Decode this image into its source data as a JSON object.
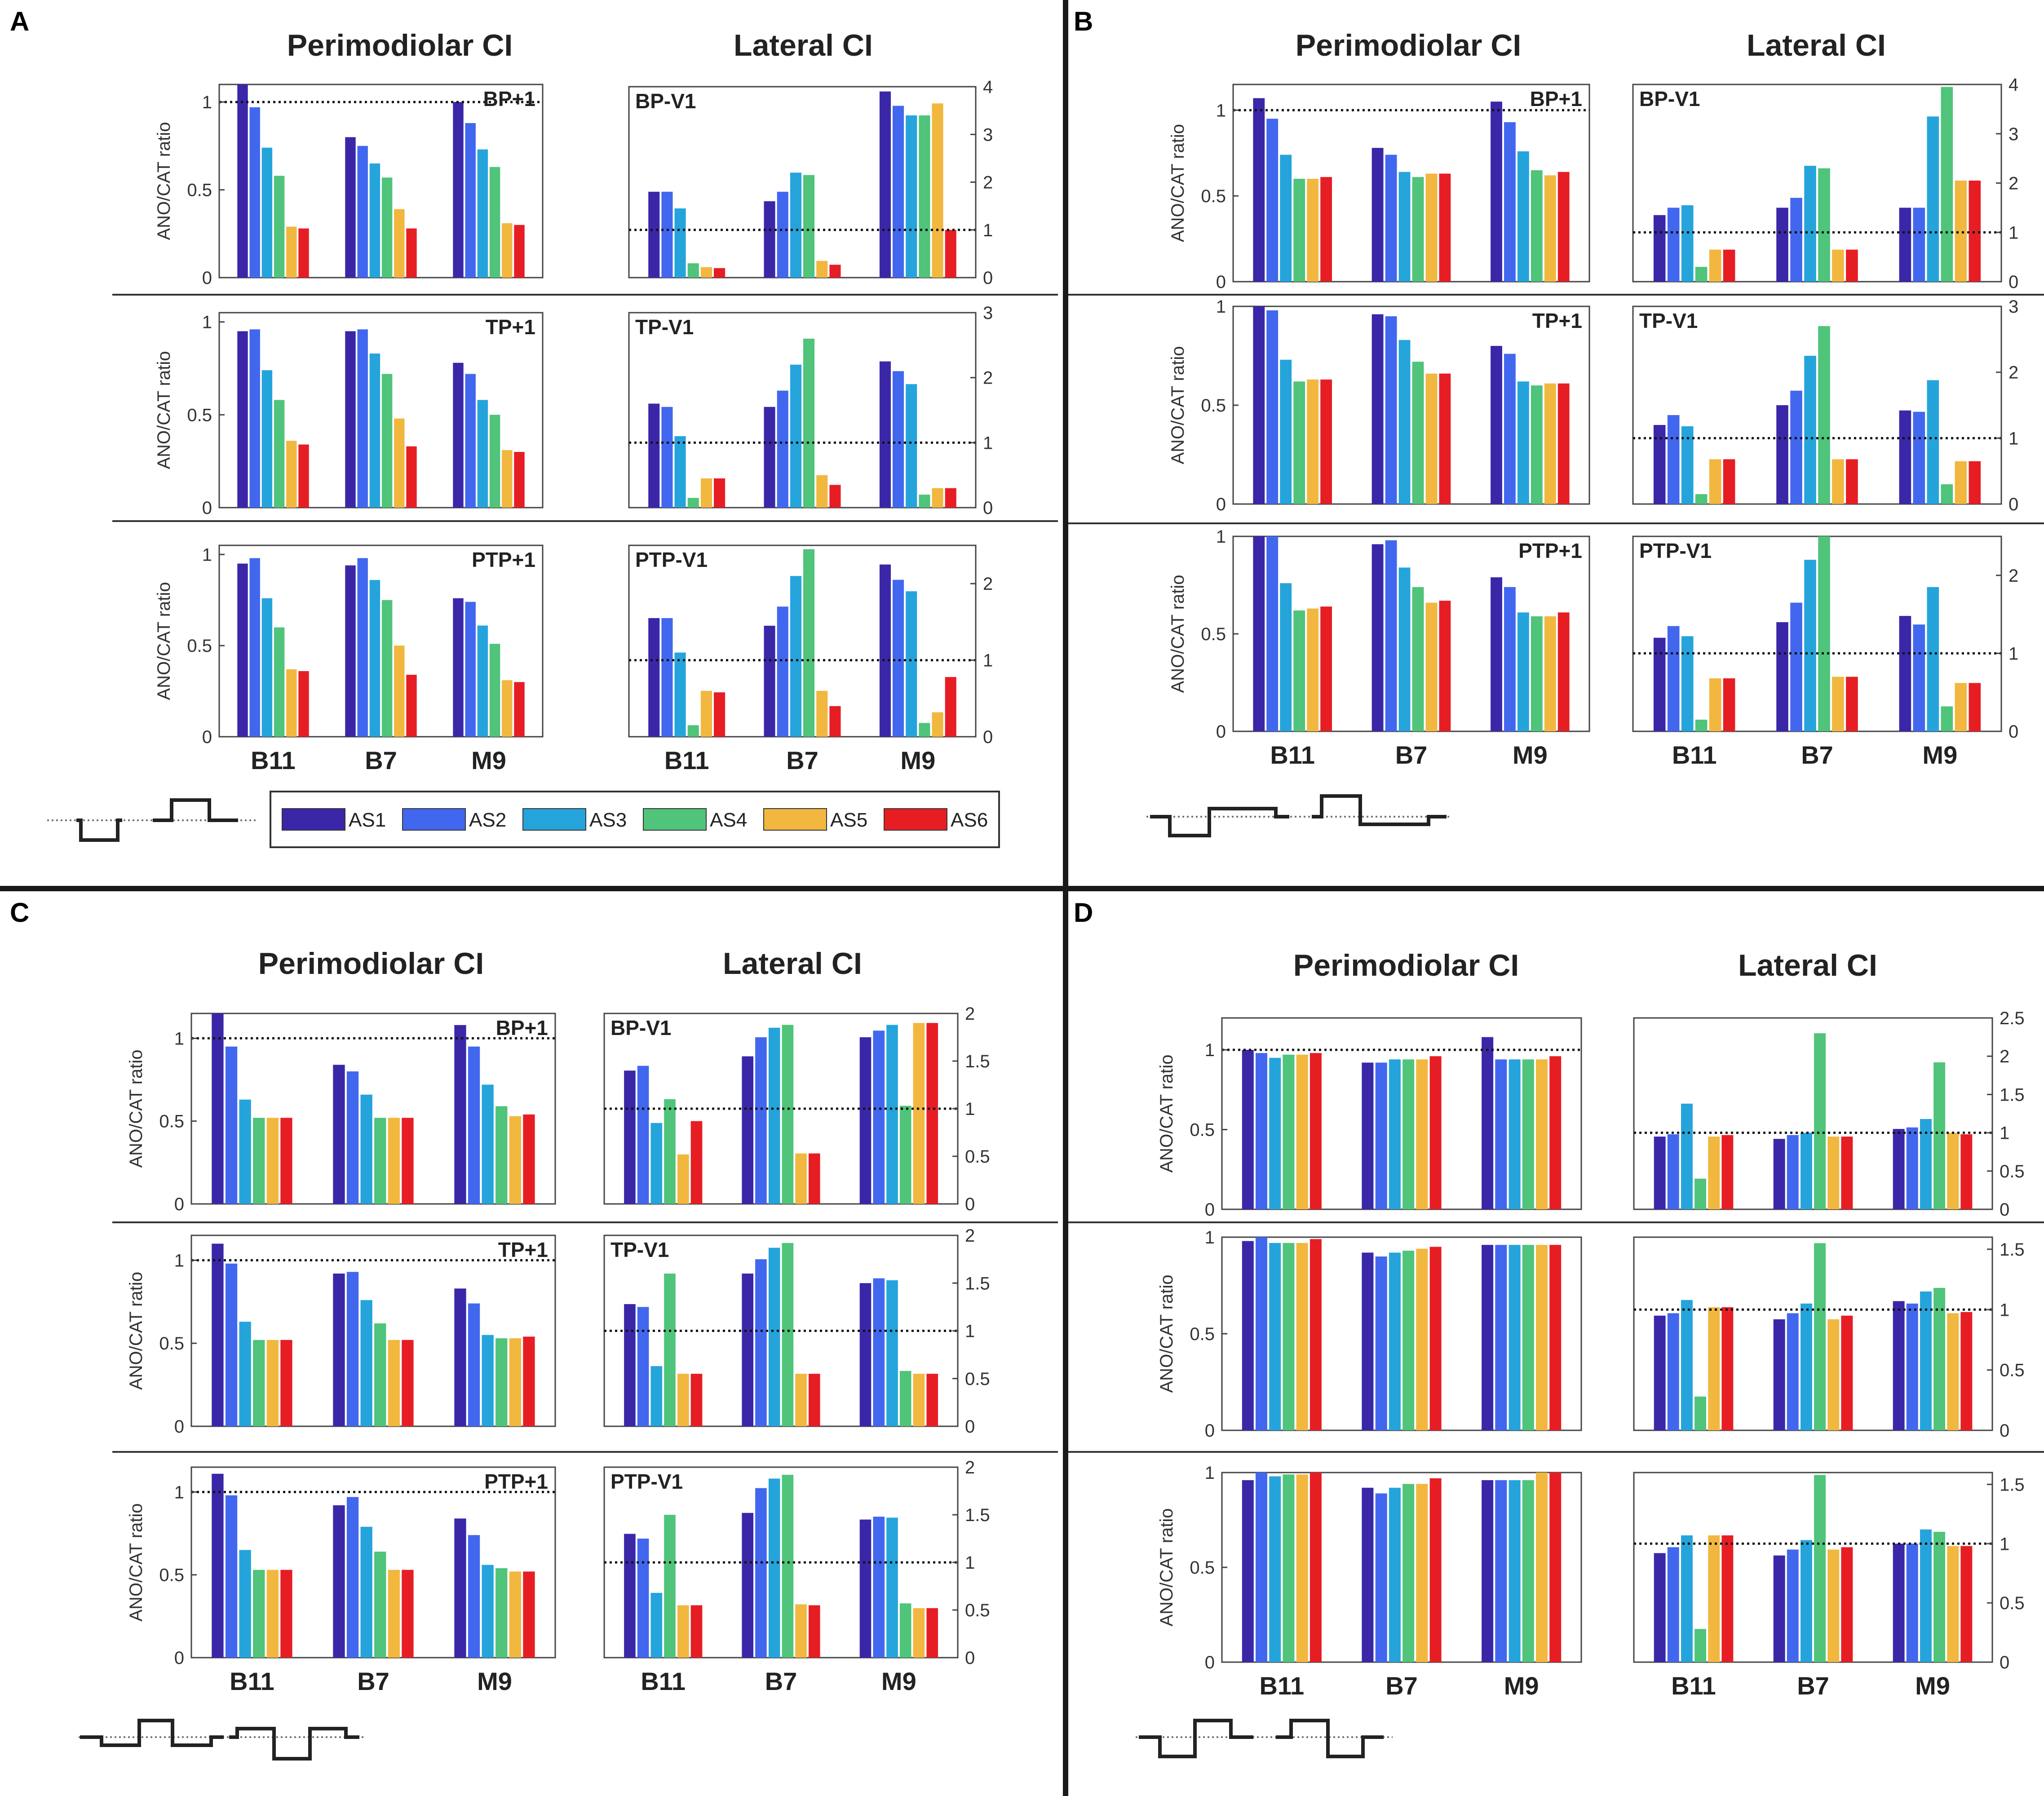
{
  "figure": {
    "panel_titles": {
      "peri": "Perimodiolar CI",
      "lat": "Lateral CI"
    },
    "ylabel": "ANO/CAT ratio",
    "xcategories": [
      "B11",
      "B7",
      "M9"
    ],
    "legend": {
      "items": [
        "AS1",
        "AS2",
        "AS3",
        "AS4",
        "AS5",
        "AS6"
      ],
      "colors": [
        "#3a27a8",
        "#4267ef",
        "#25a4dc",
        "#4fc47a",
        "#f1b73f",
        "#e61e24"
      ]
    }
  },
  "chart_data": [
    {
      "id": "A-peri-1",
      "panel": "A",
      "type": "bar",
      "side": "peri",
      "tag": "BP+1",
      "ylim": [
        0,
        1.1
      ],
      "ref": 1,
      "yticks": [
        "0",
        "0.5",
        "1"
      ],
      "series": [
        [
          1.1,
          0.97,
          0.74,
          0.58,
          0.29,
          0.28
        ],
        [
          0.8,
          0.75,
          0.65,
          0.57,
          0.39,
          0.28
        ],
        [
          1.0,
          0.88,
          0.73,
          0.63,
          0.31,
          0.3
        ]
      ]
    },
    {
      "id": "A-lat-1",
      "panel": "A",
      "type": "bar",
      "side": "lat",
      "tag": "BP-V1",
      "ylim": [
        0,
        4
      ],
      "ref": 1,
      "yticks": [
        "0",
        "1",
        "2",
        "3",
        "4"
      ],
      "series": [
        [
          1.8,
          1.8,
          1.45,
          0.3,
          0.22,
          0.2
        ],
        [
          1.6,
          1.8,
          2.2,
          2.15,
          0.35,
          0.27
        ],
        [
          3.9,
          3.6,
          3.4,
          3.4,
          3.65,
          1.0
        ]
      ]
    },
    {
      "id": "A-peri-2",
      "panel": "A",
      "type": "bar",
      "side": "peri",
      "tag": "TP+1",
      "ylim": [
        0,
        1.05
      ],
      "ref": null,
      "yticks": [
        "0",
        "0.5",
        "1"
      ],
      "series": [
        [
          0.95,
          0.96,
          0.74,
          0.58,
          0.36,
          0.34
        ],
        [
          0.95,
          0.96,
          0.83,
          0.72,
          0.48,
          0.33
        ],
        [
          0.78,
          0.72,
          0.58,
          0.5,
          0.31,
          0.3
        ]
      ]
    },
    {
      "id": "A-lat-2",
      "panel": "A",
      "type": "bar",
      "side": "lat",
      "tag": "TP-V1",
      "ylim": [
        0,
        3
      ],
      "ref": 1,
      "yticks": [
        "0",
        "1",
        "2",
        "3"
      ],
      "series": [
        [
          1.6,
          1.55,
          1.1,
          0.15,
          0.45,
          0.45
        ],
        [
          1.55,
          1.8,
          2.2,
          2.6,
          0.5,
          0.35
        ],
        [
          2.25,
          2.1,
          1.9,
          0.2,
          0.3,
          0.3
        ]
      ]
    },
    {
      "id": "A-peri-3",
      "panel": "A",
      "type": "bar",
      "side": "peri",
      "tag": "PTP+1",
      "ylim": [
        0,
        1.05
      ],
      "ref": null,
      "yticks": [
        "0",
        "0.5",
        "1"
      ],
      "series": [
        [
          0.95,
          0.98,
          0.76,
          0.6,
          0.37,
          0.36
        ],
        [
          0.94,
          0.98,
          0.86,
          0.75,
          0.5,
          0.34
        ],
        [
          0.76,
          0.74,
          0.61,
          0.51,
          0.31,
          0.3
        ]
      ]
    },
    {
      "id": "A-lat-3",
      "panel": "A",
      "type": "bar",
      "side": "lat",
      "tag": "PTP-V1",
      "ylim": [
        0,
        2.5
      ],
      "ref": 1,
      "yticks": [
        "0",
        "1",
        "2"
      ],
      "series": [
        [
          1.55,
          1.55,
          1.1,
          0.15,
          0.6,
          0.58
        ],
        [
          1.45,
          1.7,
          2.1,
          2.45,
          0.6,
          0.4
        ],
        [
          2.25,
          2.05,
          1.9,
          0.18,
          0.32,
          0.78
        ]
      ]
    },
    {
      "id": "B-peri-1",
      "panel": "B",
      "type": "bar",
      "side": "peri",
      "tag": "BP+1",
      "ylim": [
        0,
        1.15
      ],
      "ref": 1,
      "yticks": [
        "0",
        "0.5",
        "1"
      ],
      "series": [
        [
          1.07,
          0.95,
          0.74,
          0.6,
          0.6,
          0.61
        ],
        [
          0.78,
          0.74,
          0.64,
          0.61,
          0.63,
          0.63
        ],
        [
          1.05,
          0.93,
          0.76,
          0.65,
          0.62,
          0.64
        ]
      ]
    },
    {
      "id": "B-lat-1",
      "panel": "B",
      "type": "bar",
      "side": "lat",
      "tag": "BP-V1",
      "ylim": [
        0,
        4
      ],
      "ref": 1,
      "yticks": [
        "0",
        "1",
        "2",
        "3",
        "4"
      ],
      "series": [
        [
          1.35,
          1.5,
          1.55,
          0.3,
          0.65,
          0.65
        ],
        [
          1.5,
          1.7,
          2.35,
          2.3,
          0.65,
          0.65
        ],
        [
          1.5,
          1.5,
          3.35,
          3.95,
          2.05,
          2.05
        ]
      ]
    },
    {
      "id": "B-peri-2",
      "panel": "B",
      "type": "bar",
      "side": "peri",
      "tag": "TP+1",
      "ylim": [
        0,
        1.0
      ],
      "ref": null,
      "yticks": [
        "0",
        "0.5",
        "1"
      ],
      "series": [
        [
          1.0,
          0.98,
          0.73,
          0.62,
          0.63,
          0.63
        ],
        [
          0.96,
          0.95,
          0.83,
          0.72,
          0.66,
          0.66
        ],
        [
          0.8,
          0.76,
          0.62,
          0.6,
          0.61,
          0.61
        ]
      ]
    },
    {
      "id": "B-lat-2",
      "panel": "B",
      "type": "bar",
      "side": "lat",
      "tag": "TP-V1",
      "ylim": [
        0,
        3
      ],
      "ref": 1,
      "yticks": [
        "0",
        "1",
        "2",
        "3"
      ],
      "series": [
        [
          1.2,
          1.35,
          1.18,
          0.15,
          0.68,
          0.68
        ],
        [
          1.5,
          1.72,
          2.25,
          2.7,
          0.68,
          0.68
        ],
        [
          1.42,
          1.4,
          1.88,
          0.3,
          0.65,
          0.65
        ]
      ]
    },
    {
      "id": "B-peri-3",
      "panel": "B",
      "type": "bar",
      "side": "peri",
      "tag": "PTP+1",
      "ylim": [
        0,
        1.0
      ],
      "ref": null,
      "yticks": [
        "0",
        "0.5",
        "1"
      ],
      "series": [
        [
          1.0,
          1.02,
          0.76,
          0.62,
          0.63,
          0.64
        ],
        [
          0.96,
          0.98,
          0.84,
          0.74,
          0.66,
          0.67
        ],
        [
          0.79,
          0.74,
          0.61,
          0.59,
          0.59,
          0.61
        ]
      ]
    },
    {
      "id": "B-lat-3",
      "panel": "B",
      "type": "bar",
      "side": "lat",
      "tag": "PTP-V1",
      "ylim": [
        0,
        2.5
      ],
      "ref": 1,
      "yticks": [
        "0",
        "1",
        "2"
      ],
      "series": [
        [
          1.2,
          1.35,
          1.22,
          0.15,
          0.68,
          0.68
        ],
        [
          1.4,
          1.65,
          2.2,
          2.6,
          0.7,
          0.7
        ],
        [
          1.48,
          1.37,
          1.85,
          0.32,
          0.62,
          0.62
        ]
      ]
    },
    {
      "id": "C-peri-1",
      "panel": "C",
      "type": "bar",
      "side": "peri",
      "tag": "BP+1",
      "ylim": [
        0,
        1.15
      ],
      "ref": 1,
      "yticks": [
        "0",
        "0.5",
        "1"
      ],
      "series": [
        [
          1.15,
          0.95,
          0.63,
          0.52,
          0.52,
          0.52
        ],
        [
          0.84,
          0.8,
          0.66,
          0.52,
          0.52,
          0.52
        ],
        [
          1.08,
          0.95,
          0.72,
          0.59,
          0.53,
          0.54
        ]
      ]
    },
    {
      "id": "C-lat-1",
      "panel": "C",
      "type": "bar",
      "side": "lat",
      "tag": "BP-V1",
      "ylim": [
        0,
        2
      ],
      "ref": 1,
      "yticks": [
        "0",
        "0.5",
        "1",
        "1.5",
        "2"
      ],
      "series": [
        [
          1.4,
          1.45,
          0.85,
          1.1,
          0.52,
          0.87
        ],
        [
          1.55,
          1.75,
          1.85,
          1.88,
          0.53,
          0.53
        ],
        [
          1.75,
          1.82,
          1.88,
          1.03,
          1.9,
          1.9
        ]
      ]
    },
    {
      "id": "C-peri-2",
      "panel": "C",
      "type": "bar",
      "side": "peri",
      "tag": "TP+1",
      "ylim": [
        0,
        1.15
      ],
      "ref": 1,
      "yticks": [
        "0",
        "0.5",
        "1"
      ],
      "series": [
        [
          1.1,
          0.98,
          0.63,
          0.52,
          0.52,
          0.52
        ],
        [
          0.92,
          0.93,
          0.76,
          0.62,
          0.52,
          0.52
        ],
        [
          0.83,
          0.74,
          0.55,
          0.53,
          0.53,
          0.54
        ]
      ]
    },
    {
      "id": "C-lat-2",
      "panel": "C",
      "type": "bar",
      "side": "lat",
      "tag": "TP-V1",
      "ylim": [
        0,
        2
      ],
      "ref": 1,
      "yticks": [
        "0",
        "0.5",
        "1",
        "1.5",
        "2"
      ],
      "series": [
        [
          1.28,
          1.25,
          0.63,
          1.6,
          0.55,
          0.55
        ],
        [
          1.6,
          1.75,
          1.87,
          1.92,
          0.55,
          0.55
        ],
        [
          1.5,
          1.55,
          1.53,
          0.58,
          0.55,
          0.55
        ]
      ]
    },
    {
      "id": "C-peri-3",
      "panel": "C",
      "type": "bar",
      "side": "peri",
      "tag": "PTP+1",
      "ylim": [
        0,
        1.15
      ],
      "ref": 1,
      "yticks": [
        "0",
        "0.5",
        "1"
      ],
      "series": [
        [
          1.11,
          0.98,
          0.65,
          0.53,
          0.53,
          0.53
        ],
        [
          0.92,
          0.97,
          0.79,
          0.64,
          0.53,
          0.53
        ],
        [
          0.84,
          0.74,
          0.56,
          0.54,
          0.52,
          0.52
        ]
      ]
    },
    {
      "id": "C-lat-3",
      "panel": "C",
      "type": "bar",
      "side": "lat",
      "tag": "PTP-V1",
      "ylim": [
        0,
        2
      ],
      "ref": 1,
      "yticks": [
        "0",
        "0.5",
        "1",
        "1.5",
        "2"
      ],
      "series": [
        [
          1.3,
          1.25,
          0.68,
          1.5,
          0.55,
          0.55
        ],
        [
          1.52,
          1.78,
          1.88,
          1.92,
          0.56,
          0.55
        ],
        [
          1.45,
          1.48,
          1.47,
          0.57,
          0.52,
          0.52
        ]
      ]
    },
    {
      "id": "D-peri-1",
      "panel": "D",
      "type": "bar",
      "side": "peri",
      "tag": "",
      "ylim": [
        0,
        1.2
      ],
      "ref": 1,
      "yticks": [
        "0",
        "0.5",
        "1"
      ],
      "series": [
        [
          1.0,
          0.98,
          0.95,
          0.97,
          0.97,
          0.98
        ],
        [
          0.92,
          0.92,
          0.94,
          0.94,
          0.94,
          0.96
        ],
        [
          1.08,
          0.94,
          0.94,
          0.94,
          0.94,
          0.96
        ]
      ]
    },
    {
      "id": "D-lat-1",
      "panel": "D",
      "type": "bar",
      "side": "lat",
      "tag": "",
      "ylim": [
        0,
        2.5
      ],
      "ref": 1,
      "yticks": [
        "0",
        "0.5",
        "1",
        "1.5",
        "2",
        "2.5"
      ],
      "series": [
        [
          0.95,
          0.98,
          1.38,
          0.4,
          0.95,
          0.97
        ],
        [
          0.92,
          0.97,
          1.0,
          2.3,
          0.95,
          0.95
        ],
        [
          1.05,
          1.07,
          1.18,
          1.92,
          1.0,
          0.98
        ]
      ]
    },
    {
      "id": "D-peri-2",
      "panel": "D",
      "type": "bar",
      "side": "peri",
      "tag": "",
      "ylim": [
        0,
        1.0
      ],
      "ref": null,
      "yticks": [
        "0",
        "0.5",
        "1"
      ],
      "series": [
        [
          0.98,
          1.0,
          0.97,
          0.97,
          0.97,
          0.99
        ],
        [
          0.92,
          0.9,
          0.92,
          0.93,
          0.94,
          0.95
        ],
        [
          0.96,
          0.96,
          0.96,
          0.96,
          0.96,
          0.96
        ]
      ]
    },
    {
      "id": "D-lat-2",
      "panel": "D",
      "type": "bar",
      "side": "lat",
      "tag": "",
      "ylim": [
        0,
        1.6
      ],
      "ref": 1,
      "yticks": [
        "0",
        "0.5",
        "1",
        "1.5"
      ],
      "series": [
        [
          0.95,
          0.97,
          1.08,
          0.28,
          1.02,
          1.02
        ],
        [
          0.92,
          0.97,
          1.05,
          1.55,
          0.92,
          0.95
        ],
        [
          1.07,
          1.05,
          1.15,
          1.18,
          0.97,
          0.98
        ]
      ]
    },
    {
      "id": "D-peri-3",
      "panel": "D",
      "type": "bar",
      "side": "peri",
      "tag": "",
      "ylim": [
        0,
        1.0
      ],
      "ref": null,
      "yticks": [
        "0",
        "0.5",
        "1"
      ],
      "series": [
        [
          0.96,
          1.0,
          0.98,
          0.99,
          0.99,
          1.0
        ],
        [
          0.92,
          0.89,
          0.92,
          0.94,
          0.94,
          0.97
        ],
        [
          0.96,
          0.96,
          0.96,
          0.96,
          1.0,
          1.0
        ]
      ]
    },
    {
      "id": "D-lat-3",
      "panel": "D",
      "type": "bar",
      "side": "lat",
      "tag": "",
      "ylim": [
        0,
        1.6
      ],
      "ref": 1,
      "yticks": [
        "0",
        "0.5",
        "1",
        "1.5"
      ],
      "series": [
        [
          0.92,
          0.97,
          1.07,
          0.28,
          1.07,
          1.07
        ],
        [
          0.9,
          0.95,
          1.03,
          1.58,
          0.95,
          0.97
        ],
        [
          1.0,
          1.0,
          1.12,
          1.1,
          0.98,
          0.98
        ]
      ]
    }
  ]
}
